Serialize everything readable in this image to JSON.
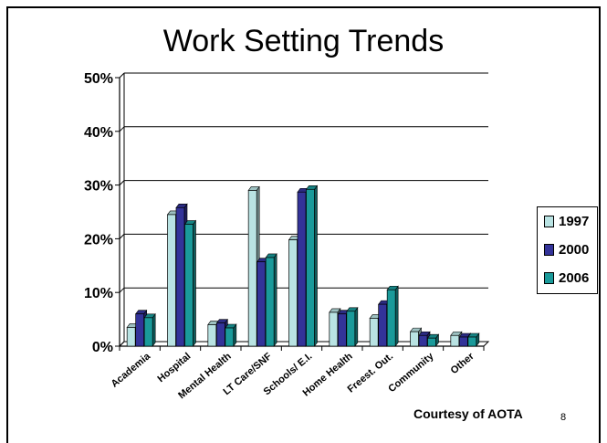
{
  "slide": {
    "credit": "Courtesy of AOTA",
    "page_number": "8"
  },
  "chart_data": {
    "type": "bar",
    "title": "Work Setting Trends",
    "xlabel": "",
    "ylabel": "",
    "ylim": [
      0,
      50
    ],
    "yticks": [
      "0%",
      "10%",
      "20%",
      "30%",
      "40%",
      "50%"
    ],
    "grid": true,
    "legend_position": "right",
    "categories": [
      "Academia",
      "Hospital",
      "Mental Health",
      "LT Care/SNF",
      "Schools/ E.I.",
      "Home Health",
      "Freest. Out.",
      "Community",
      "Other"
    ],
    "series": [
      {
        "name": "1997",
        "color": "#b9e3e3",
        "values": [
          3.5,
          24.5,
          4,
          29,
          19.8,
          6.3,
          5.2,
          2.7,
          2
        ]
      },
      {
        "name": "2000",
        "color": "#333399",
        "values": [
          6,
          25.8,
          4.3,
          15.7,
          28.7,
          6,
          7.8,
          2,
          1.7
        ]
      },
      {
        "name": "2006",
        "color": "#1a9a9a",
        "values": [
          5.3,
          22.7,
          3.4,
          16.5,
          29.2,
          6.5,
          10.5,
          1.5,
          1.7
        ]
      }
    ]
  }
}
